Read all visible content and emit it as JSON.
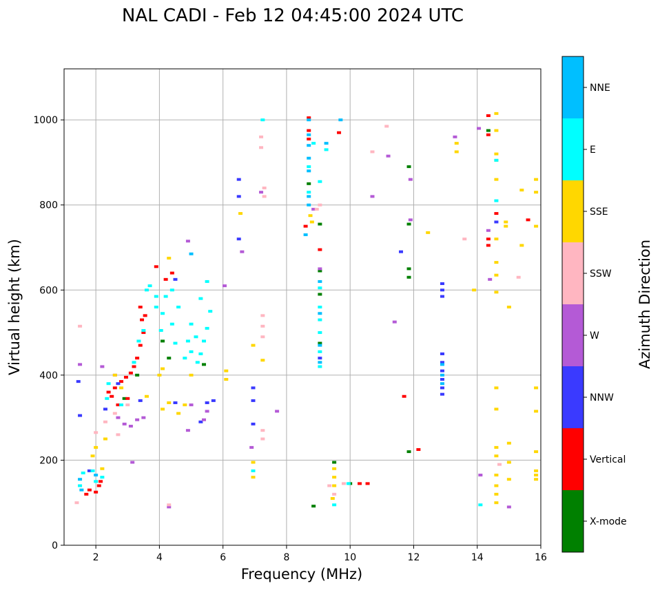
{
  "chart_data": {
    "type": "scatter",
    "title": "NAL CADI - Feb 12 04:45:00 2024 UTC",
    "xlabel": "Frequency (MHz)",
    "ylabel": "Virtual height (km)",
    "xlim": [
      1,
      16
    ],
    "ylim": [
      0,
      1120
    ],
    "xticks": [
      2,
      4,
      6,
      8,
      10,
      12,
      14,
      16
    ],
    "yticks": [
      0,
      200,
      400,
      600,
      800,
      1000
    ],
    "grid": true,
    "colorbar": {
      "label": "Azimuth Direction",
      "categories": [
        {
          "name": "X-mode",
          "color": "#008000"
        },
        {
          "name": "Vertical",
          "color": "#ff0000"
        },
        {
          "name": "NNW",
          "color": "#3a3aff"
        },
        {
          "name": "W",
          "color": "#b45ad6"
        },
        {
          "name": "SSW",
          "color": "#ffb6c1"
        },
        {
          "name": "SSE",
          "color": "#ffd700"
        },
        {
          "name": "E",
          "color": "#00ffff"
        },
        {
          "name": "NNE",
          "color": "#00bfff"
        }
      ]
    },
    "series": [
      {
        "name": "X-mode",
        "points": [
          [
            8.85,
            92
          ],
          [
            9.05,
            590
          ],
          [
            9.05,
            645
          ],
          [
            9.05,
            755
          ],
          [
            9.05,
            475
          ],
          [
            9.5,
            195
          ],
          [
            11.85,
            890
          ],
          [
            11.85,
            755
          ],
          [
            11.85,
            650
          ],
          [
            11.85,
            630
          ],
          [
            11.85,
            220
          ],
          [
            14.35,
            975
          ],
          [
            2.9,
            345
          ],
          [
            3.3,
            400
          ],
          [
            4.1,
            480
          ],
          [
            4.3,
            440
          ],
          [
            5.4,
            425
          ],
          [
            8.7,
            850
          ],
          [
            10.0,
            145
          ]
        ]
      },
      {
        "name": "Vertical",
        "points": [
          [
            1.7,
            120
          ],
          [
            1.8,
            130
          ],
          [
            2.0,
            125
          ],
          [
            2.1,
            140
          ],
          [
            2.15,
            150
          ],
          [
            2.4,
            360
          ],
          [
            2.5,
            350
          ],
          [
            2.6,
            370
          ],
          [
            2.8,
            385
          ],
          [
            2.95,
            395
          ],
          [
            3.1,
            405
          ],
          [
            3.2,
            420
          ],
          [
            3.3,
            440
          ],
          [
            3.4,
            470
          ],
          [
            3.5,
            500
          ],
          [
            3.45,
            530
          ],
          [
            3.55,
            540
          ],
          [
            3.4,
            560
          ],
          [
            3.9,
            655
          ],
          [
            4.2,
            625
          ],
          [
            4.4,
            640
          ],
          [
            8.6,
            750
          ],
          [
            8.7,
            955
          ],
          [
            8.7,
            975
          ],
          [
            8.7,
            1005
          ],
          [
            9.05,
            695
          ],
          [
            9.65,
            970
          ],
          [
            10.3,
            145
          ],
          [
            10.55,
            145
          ],
          [
            11.7,
            350
          ],
          [
            12.15,
            225
          ],
          [
            14.35,
            1010
          ],
          [
            14.35,
            965
          ],
          [
            14.35,
            720
          ],
          [
            14.35,
            705
          ],
          [
            14.6,
            780
          ],
          [
            15.6,
            765
          ],
          [
            3.0,
            345
          ],
          [
            2.7,
            330
          ]
        ]
      },
      {
        "name": "NNW",
        "points": [
          [
            1.45,
            385
          ],
          [
            1.5,
            305
          ],
          [
            1.8,
            175
          ],
          [
            2.3,
            320
          ],
          [
            2.7,
            380
          ],
          [
            3.4,
            340
          ],
          [
            4.5,
            625
          ],
          [
            4.5,
            335
          ],
          [
            5.5,
            335
          ],
          [
            5.7,
            340
          ],
          [
            5.3,
            290
          ],
          [
            6.5,
            860
          ],
          [
            6.5,
            820
          ],
          [
            6.5,
            720
          ],
          [
            6.95,
            370
          ],
          [
            6.95,
            340
          ],
          [
            6.95,
            285
          ],
          [
            11.6,
            690
          ],
          [
            12.9,
            615
          ],
          [
            12.9,
            600
          ],
          [
            12.9,
            585
          ],
          [
            12.9,
            450
          ],
          [
            12.9,
            430
          ],
          [
            12.9,
            410
          ],
          [
            12.9,
            390
          ],
          [
            12.9,
            370
          ],
          [
            12.9,
            355
          ],
          [
            14.6,
            760
          ],
          [
            9.05,
            440
          ]
        ]
      },
      {
        "name": "W",
        "points": [
          [
            1.5,
            425
          ],
          [
            2.2,
            420
          ],
          [
            2.6,
            400
          ],
          [
            2.7,
            300
          ],
          [
            2.9,
            285
          ],
          [
            3.1,
            280
          ],
          [
            3.3,
            295
          ],
          [
            3.5,
            300
          ],
          [
            3.15,
            195
          ],
          [
            4.3,
            90
          ],
          [
            4.9,
            270
          ],
          [
            5.0,
            330
          ],
          [
            5.4,
            295
          ],
          [
            5.5,
            315
          ],
          [
            6.05,
            610
          ],
          [
            6.6,
            690
          ],
          [
            6.9,
            230
          ],
          [
            7.2,
            830
          ],
          [
            7.7,
            315
          ],
          [
            8.85,
            790
          ],
          [
            9.05,
            650
          ],
          [
            10.7,
            820
          ],
          [
            11.2,
            915
          ],
          [
            11.4,
            525
          ],
          [
            11.9,
            765
          ],
          [
            11.9,
            860
          ],
          [
            13.3,
            960
          ],
          [
            14.05,
            980
          ],
          [
            14.35,
            740
          ],
          [
            14.4,
            625
          ],
          [
            14.1,
            165
          ],
          [
            15.0,
            90
          ],
          [
            4.9,
            715
          ]
        ]
      },
      {
        "name": "SSW",
        "points": [
          [
            1.5,
            515
          ],
          [
            2.0,
            265
          ],
          [
            2.3,
            290
          ],
          [
            2.6,
            310
          ],
          [
            3.0,
            330
          ],
          [
            2.7,
            260
          ],
          [
            7.25,
            540
          ],
          [
            7.25,
            515
          ],
          [
            7.25,
            490
          ],
          [
            7.25,
            270
          ],
          [
            7.25,
            250
          ],
          [
            7.2,
            960
          ],
          [
            7.2,
            935
          ],
          [
            7.3,
            840
          ],
          [
            7.3,
            820
          ],
          [
            8.95,
            790
          ],
          [
            9.05,
            800
          ],
          [
            9.5,
            120
          ],
          [
            9.35,
            140
          ],
          [
            9.8,
            145
          ],
          [
            10.7,
            925
          ],
          [
            11.15,
            985
          ],
          [
            14.7,
            190
          ],
          [
            15.3,
            630
          ],
          [
            13.6,
            720
          ],
          [
            4.3,
            95
          ],
          [
            1.4,
            100
          ]
        ]
      },
      {
        "name": "SSE",
        "points": [
          [
            1.9,
            210
          ],
          [
            2.0,
            230
          ],
          [
            2.2,
            180
          ],
          [
            2.3,
            250
          ],
          [
            2.6,
            400
          ],
          [
            2.8,
            370
          ],
          [
            3.6,
            350
          ],
          [
            4.0,
            400
          ],
          [
            4.1,
            415
          ],
          [
            4.1,
            320
          ],
          [
            4.3,
            335
          ],
          [
            4.6,
            310
          ],
          [
            4.8,
            330
          ],
          [
            4.3,
            675
          ],
          [
            5.0,
            400
          ],
          [
            6.1,
            390
          ],
          [
            6.1,
            410
          ],
          [
            6.55,
            780
          ],
          [
            6.95,
            195
          ],
          [
            6.95,
            160
          ],
          [
            8.75,
            775
          ],
          [
            8.8,
            760
          ],
          [
            9.5,
            180
          ],
          [
            9.5,
            160
          ],
          [
            9.5,
            140
          ],
          [
            9.45,
            110
          ],
          [
            12.45,
            735
          ],
          [
            13.35,
            945
          ],
          [
            13.35,
            925
          ],
          [
            13.9,
            600
          ],
          [
            14.6,
            1015
          ],
          [
            14.6,
            975
          ],
          [
            14.6,
            920
          ],
          [
            14.6,
            905
          ],
          [
            14.6,
            860
          ],
          [
            14.6,
            720
          ],
          [
            14.6,
            665
          ],
          [
            14.6,
            635
          ],
          [
            14.6,
            595
          ],
          [
            14.6,
            370
          ],
          [
            14.6,
            320
          ],
          [
            14.6,
            230
          ],
          [
            14.6,
            210
          ],
          [
            14.6,
            165
          ],
          [
            14.6,
            140
          ],
          [
            14.6,
            120
          ],
          [
            14.6,
            100
          ],
          [
            14.9,
            760
          ],
          [
            14.9,
            750
          ],
          [
            15.0,
            560
          ],
          [
            15.0,
            240
          ],
          [
            15.0,
            195
          ],
          [
            15.0,
            155
          ],
          [
            15.4,
            835
          ],
          [
            15.4,
            705
          ],
          [
            15.85,
            860
          ],
          [
            15.85,
            830
          ],
          [
            15.85,
            750
          ],
          [
            15.85,
            370
          ],
          [
            15.85,
            315
          ],
          [
            15.85,
            220
          ],
          [
            15.85,
            175
          ],
          [
            15.85,
            165
          ],
          [
            15.85,
            155
          ],
          [
            7.25,
            435
          ],
          [
            6.95,
            470
          ]
        ]
      },
      {
        "name": "E",
        "points": [
          [
            1.5,
            140
          ],
          [
            1.6,
            170
          ],
          [
            1.9,
            175
          ],
          [
            2.2,
            160
          ],
          [
            2.4,
            380
          ],
          [
            3.2,
            430
          ],
          [
            3.35,
            480
          ],
          [
            3.5,
            505
          ],
          [
            3.6,
            600
          ],
          [
            3.9,
            560
          ],
          [
            4.05,
            505
          ],
          [
            4.1,
            545
          ],
          [
            4.2,
            585
          ],
          [
            4.4,
            520
          ],
          [
            4.6,
            560
          ],
          [
            4.4,
            600
          ],
          [
            4.5,
            475
          ],
          [
            4.9,
            480
          ],
          [
            5.0,
            520
          ],
          [
            5.15,
            490
          ],
          [
            5.3,
            450
          ],
          [
            5.4,
            480
          ],
          [
            5.5,
            510
          ],
          [
            5.6,
            550
          ],
          [
            5.3,
            580
          ],
          [
            5.5,
            620
          ],
          [
            5.2,
            430
          ],
          [
            4.8,
            440
          ],
          [
            5.0,
            455
          ],
          [
            3.9,
            585
          ],
          [
            3.7,
            610
          ],
          [
            6.95,
            175
          ],
          [
            7.25,
            1000
          ],
          [
            8.7,
            830
          ],
          [
            8.7,
            890
          ],
          [
            8.85,
            945
          ],
          [
            9.05,
            420
          ],
          [
            9.05,
            455
          ],
          [
            9.05,
            500
          ],
          [
            9.05,
            530
          ],
          [
            9.05,
            560
          ],
          [
            9.05,
            605
          ],
          [
            9.05,
            855
          ],
          [
            9.25,
            930
          ],
          [
            9.5,
            95
          ],
          [
            9.95,
            145
          ],
          [
            14.6,
            905
          ],
          [
            14.6,
            810
          ],
          [
            14.1,
            95
          ],
          [
            2.0,
            150
          ],
          [
            2.35,
            345
          ],
          [
            2.8,
            330
          ]
        ]
      },
      {
        "name": "NNE",
        "points": [
          [
            1.5,
            155
          ],
          [
            1.55,
            130
          ],
          [
            2.0,
            165
          ],
          [
            5.0,
            685
          ],
          [
            8.7,
            1000
          ],
          [
            8.7,
            965
          ],
          [
            8.7,
            940
          ],
          [
            8.7,
            910
          ],
          [
            8.7,
            880
          ],
          [
            8.7,
            820
          ],
          [
            8.7,
            800
          ],
          [
            8.6,
            730
          ],
          [
            9.05,
            620
          ],
          [
            9.05,
            430
          ],
          [
            9.05,
            545
          ],
          [
            9.05,
            470
          ],
          [
            9.7,
            1000
          ],
          [
            12.9,
            425
          ],
          [
            12.9,
            400
          ],
          [
            12.9,
            380
          ],
          [
            9.25,
            945
          ]
        ]
      }
    ]
  }
}
